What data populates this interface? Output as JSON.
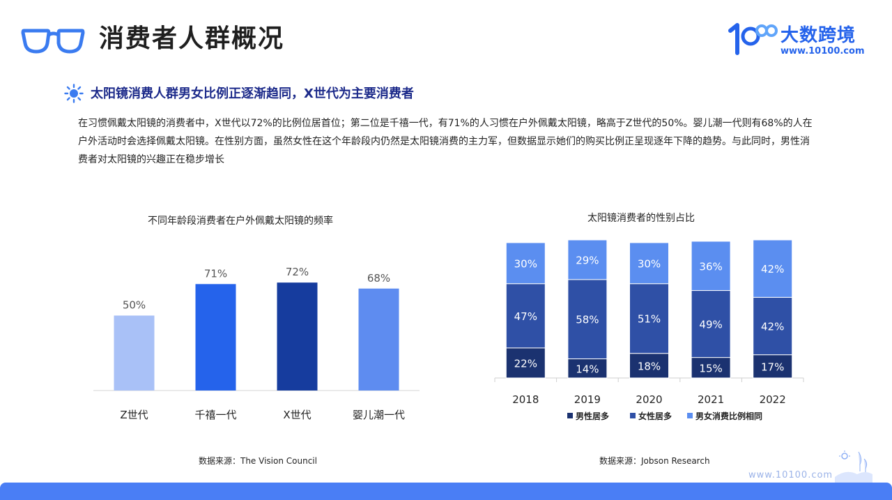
{
  "header": {
    "title": "消费者人群概况",
    "logo_name": "大数跨境",
    "logo_url": "www.10100.com"
  },
  "section": {
    "subtitle": "太阳镜消费人群男女比例正逐渐趋同，X世代为主要消费者",
    "description": "在习惯佩戴太阳镜的消费者中，X世代以72%的比例位居首位；第二位是千禧一代，有71%的人习惯在户外佩戴太阳镜，略高于Z世代的50%。婴儿潮一代则有68%的人在户外活动时会选择佩戴太阳镜。在性别方面，虽然女性在这个年龄段内仍然是太阳镜消费的主力军，但数据显示她们的购买比例正呈现逐年下降的趋势。与此同时，男性消费者对太阳镜的兴趣正在稳步增长"
  },
  "footer": {
    "url": "www.10100.com"
  },
  "chart_data": [
    {
      "type": "bar",
      "title": "不同年龄段消费者在户外佩戴太阳镜的频率",
      "categories": [
        "Z世代",
        "千禧一代",
        "X世代",
        "婴儿潮一代"
      ],
      "values": [
        50,
        71,
        72,
        68
      ],
      "value_labels": [
        "50%",
        "71%",
        "72%",
        "68%"
      ],
      "colors": [
        "#a9c1f7",
        "#2563eb",
        "#163c9e",
        "#5e8cf0"
      ],
      "ylim": [
        0,
        100
      ],
      "grid": false,
      "source": "数据来源：The Vision Council"
    },
    {
      "type": "bar",
      "stacked": true,
      "title": "太阳镜消费者的性别占比",
      "categories": [
        "2018",
        "2019",
        "2020",
        "2021",
        "2022"
      ],
      "series": [
        {
          "name": "男性居多",
          "color": "#1b3270",
          "values": [
            22,
            14,
            18,
            15,
            17
          ]
        },
        {
          "name": "女性居多",
          "color": "#2f50a6",
          "values": [
            47,
            58,
            51,
            49,
            42
          ]
        },
        {
          "name": "男女消费比例相同",
          "color": "#5b8ef0",
          "values": [
            30,
            29,
            30,
            36,
            42
          ]
        }
      ],
      "ylim": [
        0,
        100
      ],
      "grid": false,
      "legend": "bottom",
      "source": "数据来源：Jobson Research"
    }
  ]
}
